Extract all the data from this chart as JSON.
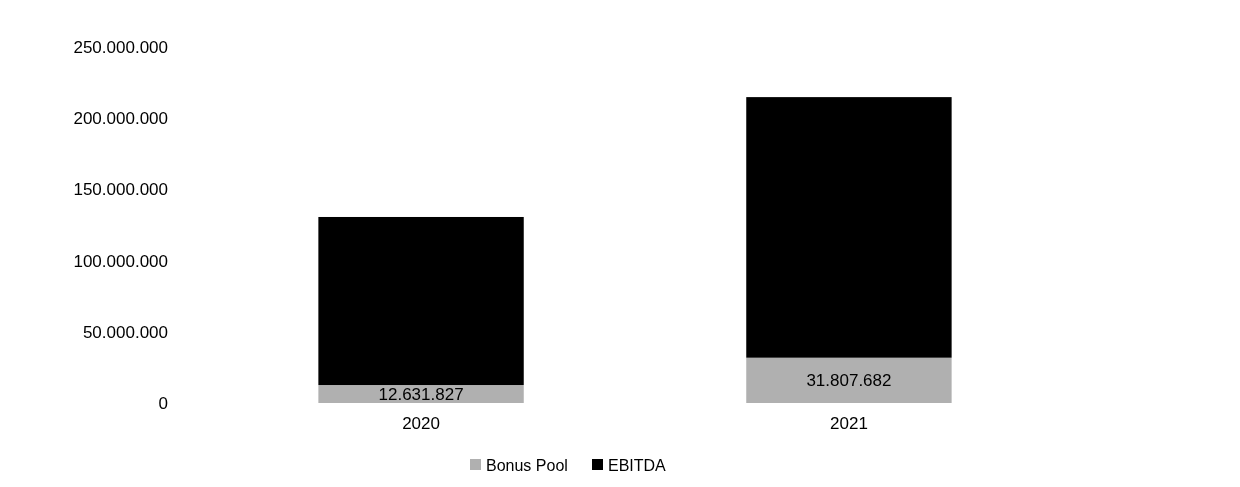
{
  "chart_data": {
    "type": "bar",
    "stacked": true,
    "categories": [
      "2020",
      "2021"
    ],
    "series": [
      {
        "name": "Bonus Pool",
        "color": "#b0b0b0",
        "values": [
          12631827,
          31807682
        ],
        "value_labels": [
          "12.631.827",
          "31.807.682"
        ]
      },
      {
        "name": "EBITDA",
        "color": "#000000",
        "values": [
          118000000,
          183000000
        ]
      }
    ],
    "ylim": [
      0,
      250000000
    ],
    "yticks": [
      {
        "value": 0,
        "label": "0"
      },
      {
        "value": 50000000,
        "label": "50.000.000"
      },
      {
        "value": 100000000,
        "label": "100.000.000"
      },
      {
        "value": 150000000,
        "label": "150.000.000"
      },
      {
        "value": 200000000,
        "label": "200.000.000"
      },
      {
        "value": 250000000,
        "label": "250.000.000"
      }
    ],
    "legend": "bottom"
  }
}
